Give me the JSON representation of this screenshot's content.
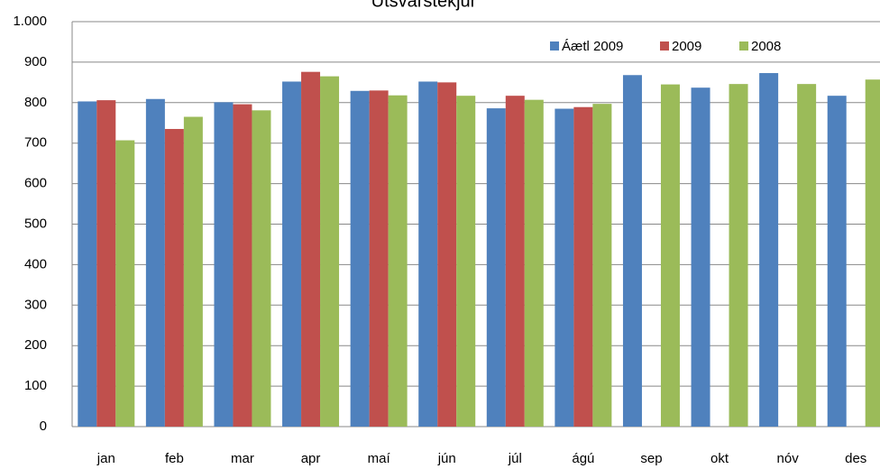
{
  "chart_data": {
    "type": "bar",
    "title": "Útsvarstekjur",
    "categories": [
      "jan",
      "feb",
      "mar",
      "apr",
      "maí",
      "jún",
      "júl",
      "ágú",
      "sep",
      "okt",
      "nóv",
      "des"
    ],
    "series": [
      {
        "name": "Áætl 2009",
        "color": "#4f81bd",
        "values": [
          803,
          809,
          801,
          852,
          829,
          852,
          786,
          785,
          868,
          837,
          873,
          817
        ]
      },
      {
        "name": "2009",
        "color": "#c0504d",
        "values": [
          806,
          735,
          796,
          876,
          830,
          850,
          817,
          789,
          null,
          null,
          null,
          null
        ]
      },
      {
        "name": "2008",
        "color": "#9bbb59",
        "values": [
          707,
          765,
          781,
          865,
          818,
          817,
          807,
          797,
          845,
          846,
          846,
          857
        ]
      }
    ],
    "ylim": [
      0,
      1000
    ],
    "yticks": [
      0,
      100,
      200,
      300,
      400,
      500,
      600,
      700,
      800,
      900,
      {
        "value": 1000,
        "label": "1.000"
      }
    ],
    "grid": true,
    "legend": "top-right"
  }
}
